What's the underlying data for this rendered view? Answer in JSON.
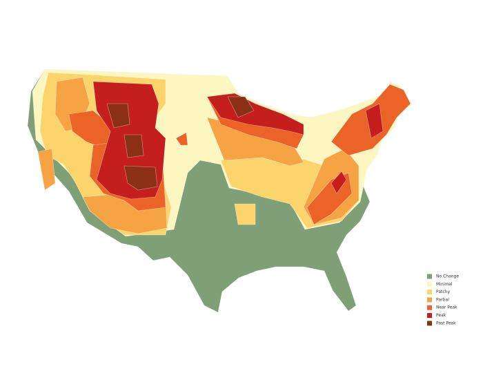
{
  "legend": {
    "items": [
      {
        "label": "No Change",
        "color": "#7f9f77"
      },
      {
        "label": "Minimal",
        "color": "#fcf7c0"
      },
      {
        "label": "Patchy",
        "color": "#fbd46c"
      },
      {
        "label": "Partial",
        "color": "#f6a443"
      },
      {
        "label": "Near Peak",
        "color": "#ec6327"
      },
      {
        "label": "Peak",
        "color": "#c41f1c"
      },
      {
        "label": "Past Peak",
        "color": "#8a3015"
      }
    ]
  }
}
